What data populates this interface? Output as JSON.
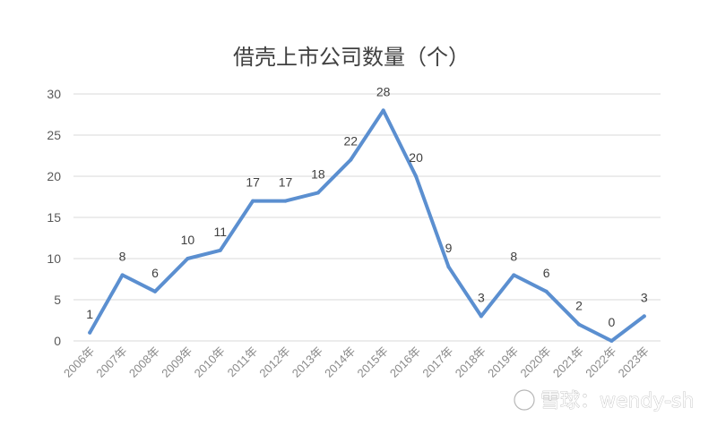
{
  "chart_data": {
    "type": "line",
    "title": "借壳上市公司数量（个）",
    "xlabel": "",
    "ylabel": "",
    "categories": [
      "2006年",
      "2007年",
      "2008年",
      "2009年",
      "2010年",
      "2011年",
      "2012年",
      "2013年",
      "2014年",
      "2015年",
      "2016年",
      "2017年",
      "2018年",
      "2019年",
      "2020年",
      "2021年",
      "2022年",
      "2023年"
    ],
    "series": [
      {
        "name": "",
        "values": [
          1,
          8,
          6,
          10,
          11,
          17,
          17,
          18,
          22,
          28,
          20,
          9,
          3,
          8,
          6,
          2,
          0,
          3
        ]
      }
    ],
    "yticks": [
      "0",
      "5",
      "10",
      "15",
      "20",
      "25",
      "30"
    ],
    "ylim": [
      0,
      30
    ],
    "grid": true,
    "legend": "none",
    "colors": {
      "series": "#5b8fd0",
      "grid": "#d9d9d9"
    }
  },
  "watermark": {
    "text": "雪球：wendy-sh"
  }
}
